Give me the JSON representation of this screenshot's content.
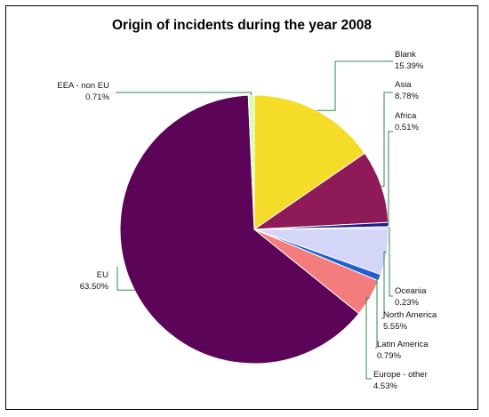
{
  "chart_data": {
    "type": "pie",
    "title": "Origin of incidents during the year 2008",
    "slices": [
      {
        "label": "Blank",
        "pct_label": "15.39%",
        "value": 15.39,
        "color": "#f5dc28"
      },
      {
        "label": "Asia",
        "pct_label": "8.78%",
        "value": 8.78,
        "color": "#8e1a57"
      },
      {
        "label": "Africa",
        "pct_label": "0.51%",
        "value": 0.51,
        "color": "#1b1f86"
      },
      {
        "label": "Oceania",
        "pct_label": "0.23%",
        "value": 0.23,
        "color": "#b9c6ee"
      },
      {
        "label": "North America",
        "pct_label": "5.55%",
        "value": 5.55,
        "color": "#d3d6f7"
      },
      {
        "label": "Latin America",
        "pct_label": "0.79%",
        "value": 0.79,
        "color": "#1f5fcf"
      },
      {
        "label": "Europe - other",
        "pct_label": "4.53%",
        "value": 4.53,
        "color": "#f47c7c"
      },
      {
        "label": "EU",
        "pct_label": "63.50%",
        "value": 63.5,
        "color": "#5c0457"
      },
      {
        "label": "EEA - non EU",
        "pct_label": "0.71%",
        "value": 0.71,
        "color": "#d6ffb3"
      }
    ]
  }
}
